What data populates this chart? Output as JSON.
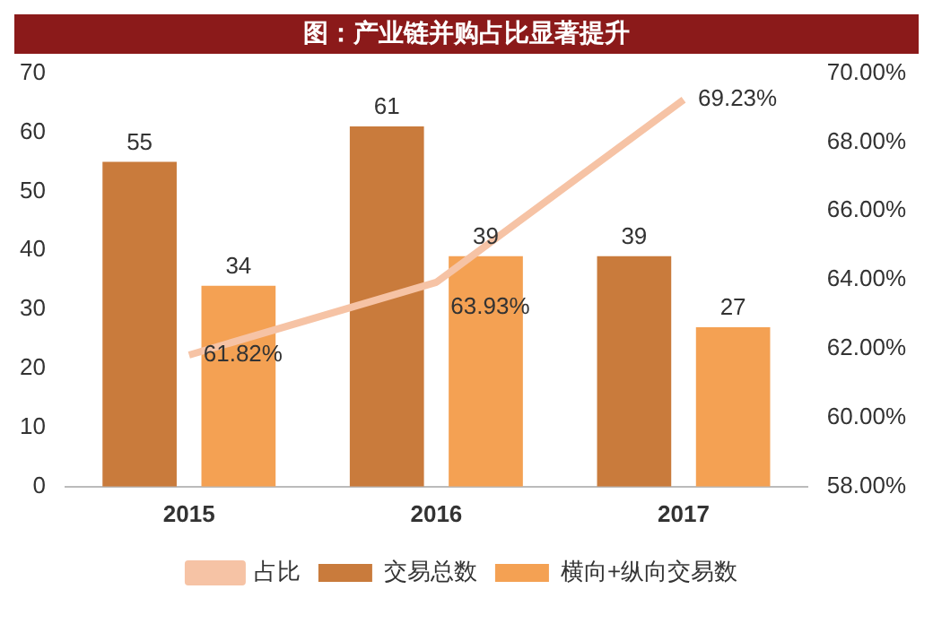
{
  "chart_data": {
    "type": "bar",
    "title": "图：产业链并购占比显著提升",
    "categories": [
      "2015",
      "2016",
      "2017"
    ],
    "series": [
      {
        "name": "交易总数",
        "color": "#c97b3c",
        "values": [
          55,
          61,
          39
        ]
      },
      {
        "name": "横向+纵向交易数",
        "color": "#f4a153",
        "values": [
          34,
          39,
          27
        ]
      },
      {
        "name": "占比",
        "type": "line",
        "axis": "y2",
        "color": "#f6c3a5",
        "values": [
          61.82,
          63.93,
          69.23
        ],
        "value_labels": [
          "61.82%",
          "63.93%",
          "69.23%"
        ]
      }
    ],
    "ylim": [
      0,
      70
    ],
    "yticks": [
      0,
      10,
      20,
      30,
      40,
      50,
      60,
      70
    ],
    "y2lim": [
      58,
      70
    ],
    "y2ticks": [
      {
        "value": 58,
        "label": "58.00%"
      },
      {
        "value": 60,
        "label": "60.00%"
      },
      {
        "value": 62,
        "label": "62.00%"
      },
      {
        "value": 64,
        "label": "64.00%"
      },
      {
        "value": 66,
        "label": "66.00%"
      },
      {
        "value": 68,
        "label": "68.00%"
      },
      {
        "value": 70,
        "label": "70.00%"
      }
    ],
    "data_labels": true,
    "grid": false,
    "legend": "bottom",
    "marker": "none",
    "line_style": "solid"
  }
}
